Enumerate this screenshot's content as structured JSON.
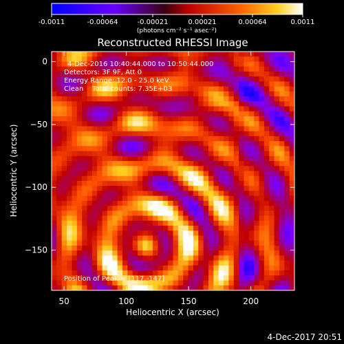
{
  "colorbar": {
    "ticks": [
      "-0.0011",
      "-0.00064",
      "-0.00021",
      "0.00021",
      "0.00064",
      "0.0011"
    ],
    "units": "(photons cm⁻² s⁻¹ asec⁻²)"
  },
  "footer": {
    "timestamp": "4-Dec-2017 20:51"
  },
  "chart_data": {
    "type": "heatmap",
    "title": "Reconstructed RHESSI Image",
    "xlabel": "Heliocentric X (arcsec)",
    "ylabel": "Heliocentric Y (arcsec)",
    "xlim": [
      40,
      235
    ],
    "ylim": [
      -182,
      8
    ],
    "x_ticks": [
      50,
      100,
      150,
      200
    ],
    "y_ticks": [
      0,
      -50,
      -100,
      -150
    ],
    "annotations": [
      "4-Dec-2016 10:40:44.000 to 10:50:44.000",
      "Detectors: 3F 9F, Att 0",
      "Energy Range: 12.0 - 25.0 keV",
      "Clean    Total counts: 7.35E+03"
    ],
    "peak_label": "Position of Peak = [117,-147]",
    "peak": [
      117,
      -147
    ],
    "zrange": [
      -0.0011,
      0.0011
    ],
    "colormap": [
      "#0000ff",
      "#7a00ff",
      "#c00000",
      "#ff5000",
      "#ffd020",
      "#ffffff"
    ],
    "grid": false
  }
}
